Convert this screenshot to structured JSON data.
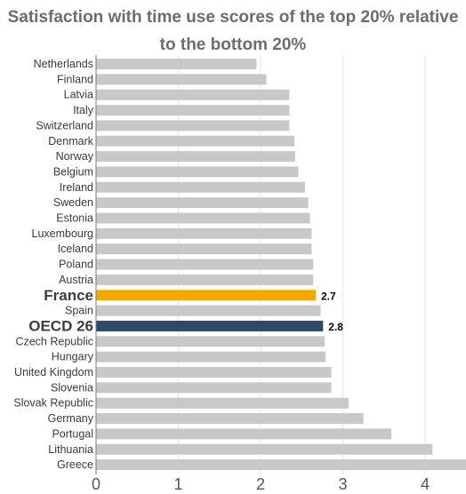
{
  "chart_data": {
    "type": "bar",
    "orientation": "horizontal",
    "title": "Satisfaction with time use scores of the top 20% relative to the bottom 20%",
    "xlim": [
      0,
      4.5
    ],
    "xticks": [
      "0",
      "1",
      "2",
      "3",
      "4"
    ],
    "grid": "vertical",
    "colors": {
      "default": "#c8c8c8",
      "France": "#f5a800",
      "OECD 26": "#2d4a6a"
    },
    "categories": [
      "Netherlands",
      "Finland",
      "Latvia",
      "Italy",
      "Switzerland",
      "Denmark",
      "Norway",
      "Belgium",
      "Ireland",
      "Sweden",
      "Estonia",
      "Luxembourg",
      "Iceland",
      "Poland",
      "Austria",
      "France",
      "Spain",
      "OECD 26",
      "Czech Republic",
      "Hungary",
      "United Kingdom",
      "Slovenia",
      "Slovak Republic",
      "Germany",
      "Portugal",
      "Lithuania",
      "Greece"
    ],
    "values": [
      1.95,
      2.07,
      2.35,
      2.35,
      2.35,
      2.41,
      2.42,
      2.46,
      2.54,
      2.58,
      2.6,
      2.62,
      2.62,
      2.64,
      2.64,
      2.67,
      2.73,
      2.76,
      2.78,
      2.79,
      2.86,
      2.86,
      3.07,
      3.25,
      3.59,
      4.09,
      4.55
    ],
    "highlighted": [
      "France",
      "OECD 26"
    ],
    "data_labels": {
      "France": "2.7",
      "OECD 26": "2.8"
    }
  }
}
